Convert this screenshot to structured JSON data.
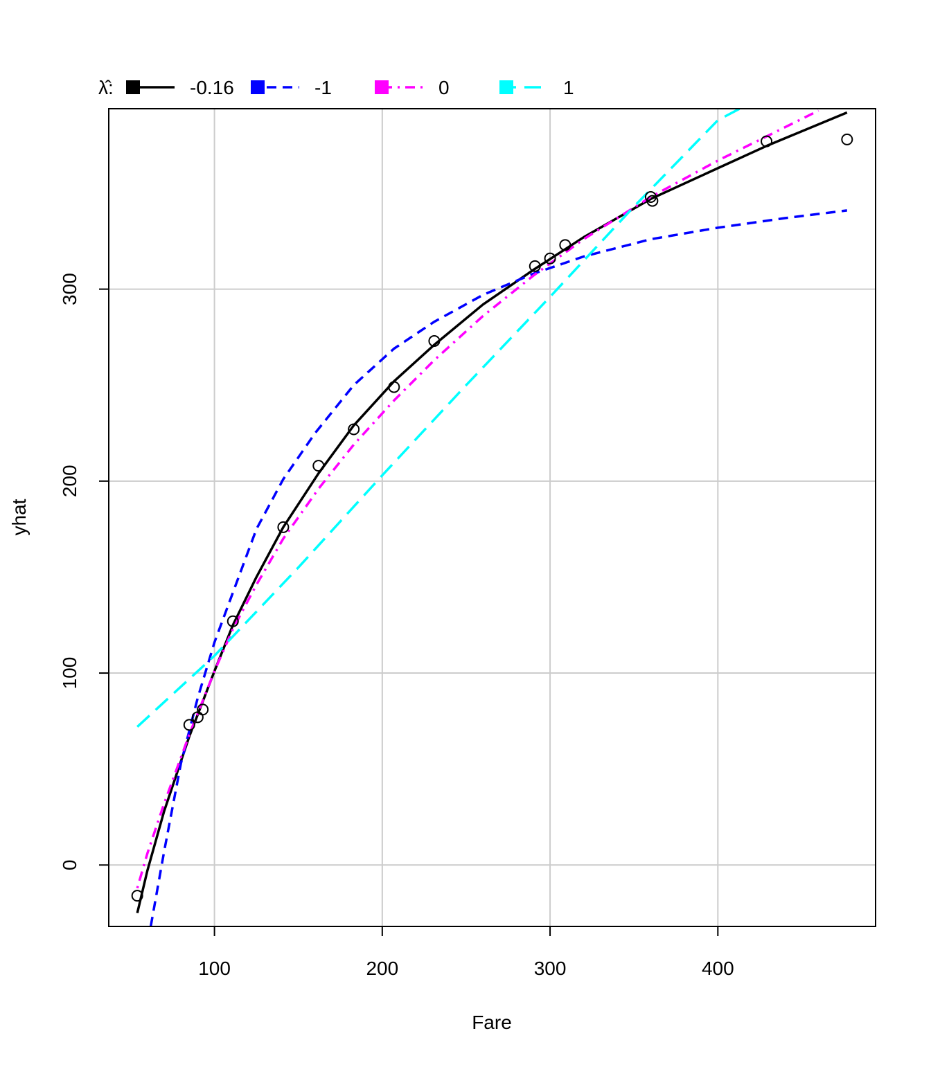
{
  "chart_data": {
    "type": "scatter",
    "xlabel": "Fare",
    "ylabel": "yhat",
    "xlim": [
      37,
      494
    ],
    "ylim": [
      -32,
      394
    ],
    "x_ticks": [
      100,
      200,
      300,
      400
    ],
    "y_ticks": [
      0,
      100,
      200,
      300
    ],
    "grid": true,
    "legend": {
      "placement": "top-left, above plot",
      "title": "λ̂:",
      "entries": [
        {
          "label": "-0.16",
          "color": "#000000",
          "dash": "solid"
        },
        {
          "label": "-1",
          "color": "#0000FF",
          "dash": "dashed"
        },
        {
          "label": "0",
          "color": "#FF00FF",
          "dash": "dotdash"
        },
        {
          "label": "1",
          "color": "#00FFFF",
          "dash": "longdash"
        }
      ]
    },
    "points": [
      {
        "x": 54,
        "y": -16
      },
      {
        "x": 85,
        "y": 73
      },
      {
        "x": 90,
        "y": 77
      },
      {
        "x": 93,
        "y": 81
      },
      {
        "x": 111,
        "y": 127
      },
      {
        "x": 141,
        "y": 176
      },
      {
        "x": 162,
        "y": 208
      },
      {
        "x": 183,
        "y": 227
      },
      {
        "x": 207,
        "y": 249
      },
      {
        "x": 231,
        "y": 273
      },
      {
        "x": 291,
        "y": 312
      },
      {
        "x": 300,
        "y": 316
      },
      {
        "x": 309,
        "y": 323
      },
      {
        "x": 360,
        "y": 348
      },
      {
        "x": 361,
        "y": 346
      },
      {
        "x": 429,
        "y": 377
      },
      {
        "x": 477,
        "y": 378
      }
    ],
    "series": [
      {
        "color": "#000000",
        "dash": "solid",
        "points": [
          [
            54,
            -25
          ],
          [
            60,
            -3
          ],
          [
            70,
            28
          ],
          [
            85,
            67
          ],
          [
            100,
            101
          ],
          [
            111,
            125
          ],
          [
            125,
            150
          ],
          [
            141,
            176
          ],
          [
            162,
            204
          ],
          [
            183,
            229
          ],
          [
            207,
            252
          ],
          [
            231,
            271
          ],
          [
            260,
            292
          ],
          [
            290,
            310
          ],
          [
            320,
            327
          ],
          [
            360,
            347
          ],
          [
            400,
            363
          ],
          [
            430,
            375
          ],
          [
            477,
            392
          ]
        ]
      },
      {
        "color": "#0000FF",
        "dash": "dashed",
        "points": [
          [
            62,
            -32
          ],
          [
            70,
            7
          ],
          [
            80,
            53
          ],
          [
            90,
            87
          ],
          [
            100,
            116
          ],
          [
            111,
            142
          ],
          [
            125,
            175
          ],
          [
            141,
            201
          ],
          [
            160,
            225
          ],
          [
            183,
            250
          ],
          [
            207,
            269
          ],
          [
            231,
            283
          ],
          [
            260,
            297
          ],
          [
            290,
            308
          ],
          [
            320,
            317
          ],
          [
            360,
            326
          ],
          [
            400,
            332
          ],
          [
            440,
            337
          ],
          [
            477,
            341
          ]
        ]
      },
      {
        "color": "#FF00FF",
        "dash": "dotdash",
        "points": [
          [
            54,
            -12
          ],
          [
            60,
            6
          ],
          [
            70,
            32
          ],
          [
            85,
            68
          ],
          [
            100,
            101
          ],
          [
            111,
            123
          ],
          [
            125,
            146
          ],
          [
            141,
            170
          ],
          [
            162,
            196
          ],
          [
            183,
            219
          ],
          [
            207,
            242
          ],
          [
            231,
            263
          ],
          [
            260,
            286
          ],
          [
            290,
            307
          ],
          [
            320,
            326
          ],
          [
            360,
            348
          ],
          [
            400,
            367
          ],
          [
            430,
            380
          ],
          [
            460,
            393
          ]
        ]
      },
      {
        "color": "#00FFFF",
        "dash": "longdash",
        "points": [
          [
            54,
            72
          ],
          [
            100,
            109
          ],
          [
            150,
            155
          ],
          [
            200,
            203
          ],
          [
            250,
            250
          ],
          [
            300,
            296
          ],
          [
            350,
            343
          ],
          [
            400,
            388
          ],
          [
            413,
            394
          ]
        ]
      }
    ]
  }
}
